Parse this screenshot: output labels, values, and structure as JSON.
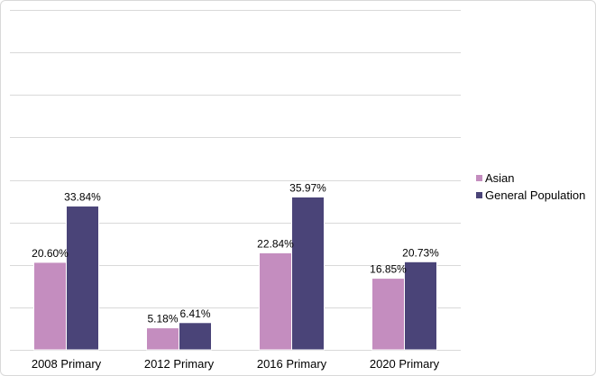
{
  "colors": {
    "asian": "#c48dbf",
    "general_population": "#4a4478",
    "grid": "#d9d9d9"
  },
  "chart_data": {
    "type": "bar",
    "categories": [
      "2008 Primary",
      "2012 Primary",
      "2016 Primary",
      "2020 Primary"
    ],
    "series": [
      {
        "name": "Asian",
        "values": [
          20.6,
          5.18,
          22.84,
          16.85
        ],
        "labels": [
          "20.60%",
          "5.18%",
          "22.84%",
          "16.85%"
        ]
      },
      {
        "name": "General Population",
        "values": [
          33.84,
          6.41,
          35.97,
          20.73
        ],
        "labels": [
          "33.84%",
          "6.41%",
          "35.97%",
          "20.73%"
        ]
      }
    ],
    "ylim": [
      0,
      80
    ],
    "grid": true,
    "legend_position": "right"
  }
}
